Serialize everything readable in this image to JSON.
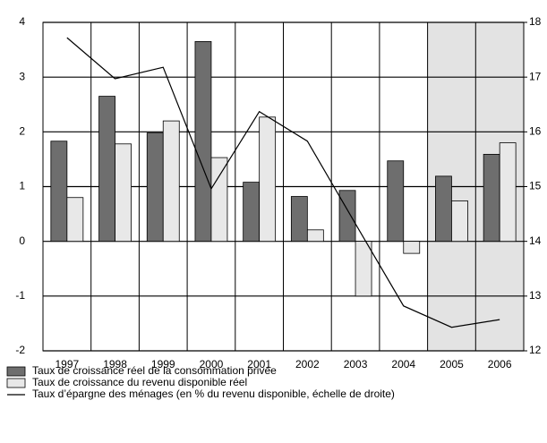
{
  "chart_data": {
    "type": "bar_line",
    "categories": [
      "1997",
      "1998",
      "1999",
      "2000",
      "2001",
      "2002",
      "2003",
      "2004",
      "2005",
      "2006"
    ],
    "series": [
      {
        "name": "Taux de croissance réel de la consommation privée",
        "color": "#6e6e6e",
        "type": "bar",
        "values": [
          1.83,
          2.65,
          1.98,
          3.65,
          1.08,
          0.82,
          0.93,
          1.47,
          1.19,
          1.59
        ]
      },
      {
        "name": "Taux de croissance du revenu disponible réel",
        "color": "#e8e8e8",
        "type": "bar",
        "values": [
          0.8,
          1.78,
          2.2,
          1.53,
          2.27,
          0.21,
          -1.0,
          -0.22,
          0.74,
          1.8
        ]
      },
      {
        "name": "Taux d’épargne des ménages (en % du revenu disponible, échelle de droite)",
        "color": "#000000",
        "type": "line",
        "axis": "y2",
        "values": [
          17.72,
          16.97,
          17.18,
          14.96,
          16.37,
          15.83,
          14.32,
          12.82,
          12.43,
          12.57
        ]
      }
    ],
    "ylim": [
      -2,
      4
    ],
    "yticks": [
      -2,
      -1,
      0,
      1,
      2,
      3,
      4
    ],
    "y2lim": [
      12,
      18
    ],
    "y2ticks": [
      12,
      13,
      14,
      15,
      16,
      17,
      18
    ],
    "grid": true,
    "shaded_categories": [
      "2005",
      "2006"
    ],
    "shade_color": "#e3e3e3",
    "legend": "bottom"
  }
}
